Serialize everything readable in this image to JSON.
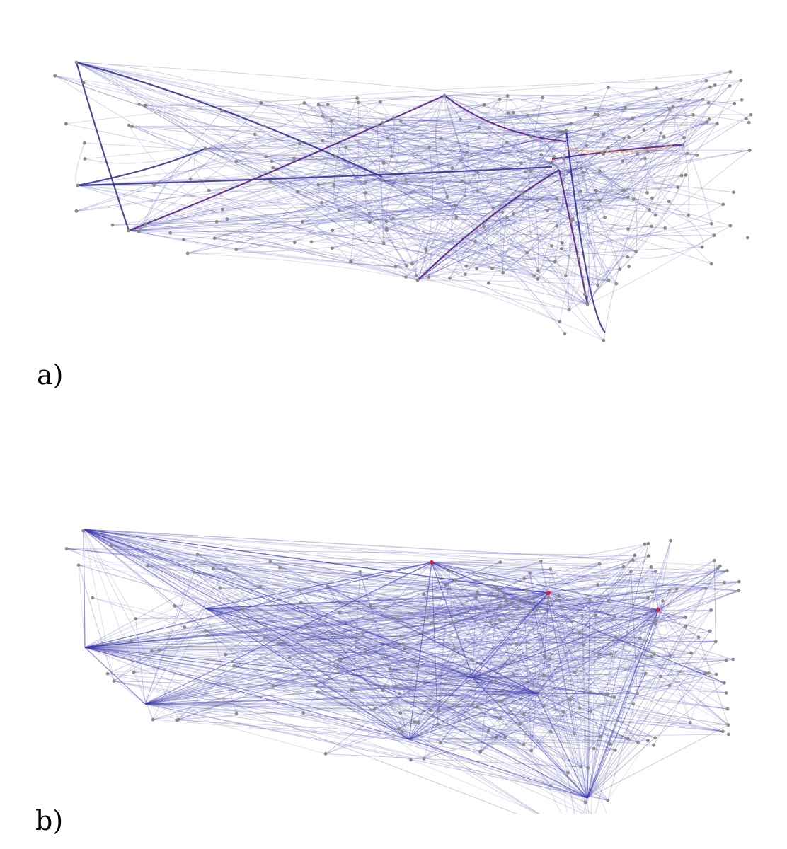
{
  "panels": [
    {
      "label": "a)",
      "style": "bundled",
      "accent": "#2b2a8c",
      "highlight": [
        "#b3126a",
        "#f0a043"
      ]
    },
    {
      "label": "b)",
      "style": "straight",
      "accent": "#3a37b0",
      "highlight": [
        "#d62050"
      ]
    }
  ],
  "colors": {
    "edge": "#3a3aa8",
    "node": "#8a8a8a",
    "background": "#ffffff"
  }
}
